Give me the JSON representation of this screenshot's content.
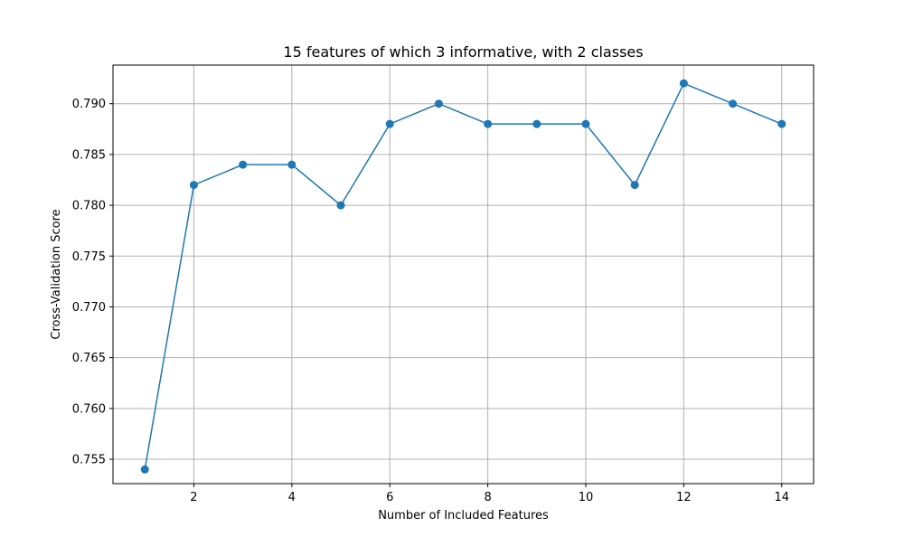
{
  "chart_data": {
    "type": "line",
    "title": "15 features of which 3 informative, with 2 classes",
    "xlabel": "Number of Included Features",
    "ylabel": "Cross-Validation Score",
    "xlim": [
      0.35,
      14.65
    ],
    "ylim": [
      0.7526,
      0.7938
    ],
    "x_ticks": [
      2,
      4,
      6,
      8,
      10,
      12,
      14
    ],
    "x_tick_labels": [
      "2",
      "4",
      "6",
      "8",
      "10",
      "12",
      "14"
    ],
    "y_ticks": [
      0.755,
      0.76,
      0.765,
      0.77,
      0.775,
      0.78,
      0.785,
      0.79
    ],
    "y_tick_labels": [
      "0.755",
      "0.760",
      "0.765",
      "0.770",
      "0.775",
      "0.780",
      "0.785",
      "0.790"
    ],
    "grid": true,
    "series": [
      {
        "x": [
          1,
          2,
          3,
          4,
          5,
          6,
          7,
          8,
          9,
          10,
          11,
          12,
          13,
          14
        ],
        "values": [
          0.754,
          0.782,
          0.784,
          0.784,
          0.78,
          0.788,
          0.79,
          0.788,
          0.788,
          0.788,
          0.782,
          0.792,
          0.79,
          0.788
        ],
        "color": "#1f77b4",
        "marker": "circle"
      }
    ]
  }
}
